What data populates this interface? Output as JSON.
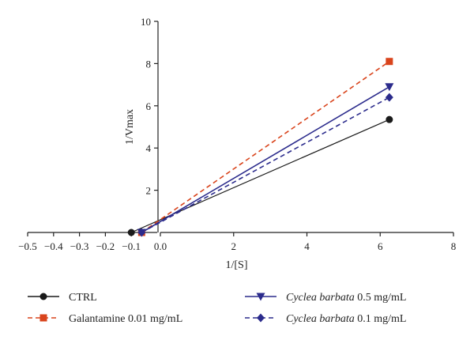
{
  "chart_data": {
    "type": "line",
    "xlabel": "1/[S]",
    "ylabel": "1/Vmax",
    "xlim": [
      -0.5,
      8
    ],
    "ylim": [
      0,
      10
    ],
    "x_ticks": [
      -0.5,
      -0.4,
      -0.3,
      -0.2,
      -0.1,
      0.0,
      2,
      4,
      6,
      8
    ],
    "x_tick_labels": [
      "−0.5",
      "−0.4",
      "−0.3",
      "−0.2",
      "−0.1",
      "0.0",
      "2",
      "4",
      "6",
      "8"
    ],
    "y_ticks": [
      2,
      4,
      6,
      8,
      10
    ],
    "y_tick_labels": [
      "2",
      "4",
      "6",
      "8",
      "10"
    ],
    "x_axis_note": "segmented x axis: -0.5 to 0.0 expanded, 0 to 8 linear",
    "legend_position": "bottom",
    "series": [
      {
        "name": "CTRL",
        "name_parts": [
          {
            "text": "CTRL",
            "italic": false
          }
        ],
        "color": "#1a1a1a",
        "dash": "solid",
        "marker": "circle",
        "x": [
          -0.1,
          6.25
        ],
        "y": [
          0.0,
          5.35
        ]
      },
      {
        "name": "Galantamine 0.01 mg/mL",
        "name_parts": [
          {
            "text": "Galantamine 0.01 mg/mL",
            "italic": false
          }
        ],
        "color": "#d9441c",
        "dash": "dashed",
        "marker": "square",
        "x": [
          -0.06,
          6.25
        ],
        "y": [
          0.0,
          8.1
        ]
      },
      {
        "name": "Cyclea barbata 0.5 mg/mL",
        "name_parts": [
          {
            "text": "Cyclea barbata",
            "italic": true
          },
          {
            "text": " 0.5 mg/mL",
            "italic": false
          }
        ],
        "color": "#2b2b8c",
        "dash": "solid",
        "marker": "triangle-down",
        "x": [
          -0.06,
          6.25
        ],
        "y": [
          0.0,
          6.9
        ]
      },
      {
        "name": "Cyclea barbata 0.1 mg/mL",
        "name_parts": [
          {
            "text": "Cyclea barbata",
            "italic": true
          },
          {
            "text": " 0.1 mg/mL",
            "italic": false
          }
        ],
        "color": "#2b2b8c",
        "dash": "dashed",
        "marker": "diamond",
        "x": [
          -0.06,
          6.25
        ],
        "y": [
          0.0,
          6.4
        ]
      }
    ],
    "legend_order": [
      0,
      2,
      1,
      3
    ]
  }
}
